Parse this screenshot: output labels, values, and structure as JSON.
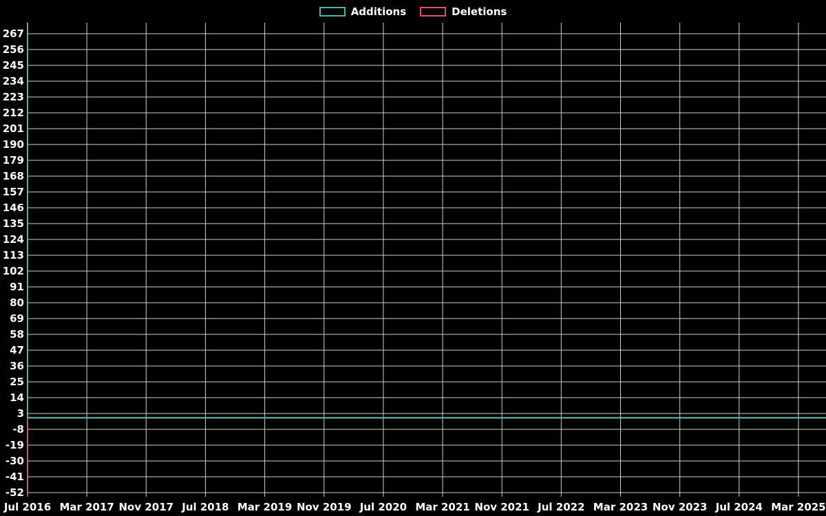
{
  "chart_data": {
    "type": "line",
    "title": "",
    "background_color": "#000000",
    "text_color": "#ffffff",
    "grid_color": "#d0d0d0",
    "grid": "on",
    "legend_position": "top-center",
    "x_tick_labels": [
      "Jul 2016",
      "Mar 2017",
      "Nov 2017",
      "Jul 2018",
      "Mar 2019",
      "Nov 2019",
      "Jul 2020",
      "Mar 2021",
      "Nov 2021",
      "Jul 2022",
      "Mar 2023",
      "Nov 2023",
      "Jul 2024",
      "Mar 2025"
    ],
    "x_tick_interval_months": 8,
    "y_tick_labels": [
      267,
      256,
      245,
      234,
      223,
      212,
      201,
      190,
      179,
      168,
      157,
      146,
      135,
      124,
      113,
      102,
      91,
      80,
      69,
      58,
      47,
      36,
      25,
      14,
      3,
      -8,
      -19,
      -30,
      -41,
      -52
    ],
    "y_tick_step": 11,
    "ylim": [
      -56,
      275
    ],
    "series": [
      {
        "name": "Additions",
        "color": "#52b5ac",
        "clipped_at_plot_top": true,
        "points": [
          {
            "x": "2016-07",
            "y": 276
          },
          {
            "x": "2016-07",
            "y": 0
          },
          {
            "x": "2025-07",
            "y": 0
          }
        ]
      },
      {
        "name": "Deletions",
        "color": "#e35062",
        "points": [
          {
            "x": "2016-07",
            "y": -52
          },
          {
            "x": "2016-07",
            "y": 0
          },
          {
            "x": "2025-07",
            "y": 0
          }
        ]
      }
    ]
  }
}
